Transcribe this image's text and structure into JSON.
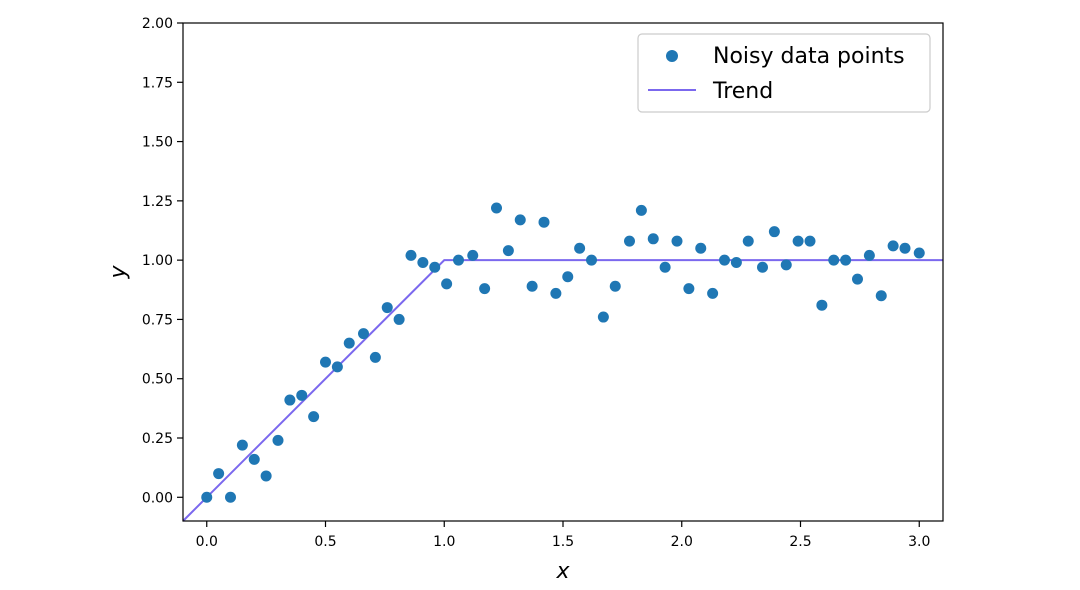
{
  "chart_data": {
    "type": "scatter",
    "title": "",
    "xlabel": "x",
    "ylabel": "y",
    "xlim": [
      -0.1,
      3.1
    ],
    "ylim": [
      -0.1,
      2.0
    ],
    "xticks": [
      "0.0",
      "0.5",
      "1.0",
      "1.5",
      "2.0",
      "2.5",
      "3.0"
    ],
    "yticks": [
      "0.00",
      "0.25",
      "0.50",
      "0.75",
      "1.00",
      "1.25",
      "1.50",
      "1.75",
      "2.00"
    ],
    "grid": false,
    "legend_position": "top-right",
    "series": [
      {
        "name": "Noisy data points",
        "kind": "scatter",
        "color": "#1f77b4",
        "x": [
          0.0,
          0.05,
          0.1,
          0.15,
          0.2,
          0.25,
          0.3,
          0.35,
          0.4,
          0.45,
          0.5,
          0.55,
          0.6,
          0.66,
          0.71,
          0.76,
          0.81,
          0.86,
          0.91,
          0.96,
          1.01,
          1.06,
          1.12,
          1.17,
          1.22,
          1.27,
          1.32,
          1.37,
          1.42,
          1.47,
          1.52,
          1.57,
          1.62,
          1.67,
          1.72,
          1.78,
          1.83,
          1.88,
          1.93,
          1.98,
          2.03,
          2.08,
          2.13,
          2.18,
          2.23,
          2.28,
          2.34,
          2.39,
          2.44,
          2.49,
          2.54,
          2.59,
          2.64,
          2.69,
          2.74,
          2.79,
          2.84,
          2.89,
          2.94,
          3.0
        ],
        "y": [
          0.0,
          0.1,
          0.0,
          0.22,
          0.16,
          0.09,
          0.24,
          0.41,
          0.43,
          0.34,
          0.57,
          0.55,
          0.65,
          0.69,
          0.59,
          0.8,
          0.75,
          1.02,
          0.99,
          0.97,
          0.9,
          1.0,
          1.02,
          0.88,
          1.22,
          1.04,
          1.17,
          0.89,
          1.16,
          0.86,
          0.93,
          1.05,
          1.0,
          0.76,
          0.89,
          1.08,
          1.21,
          1.09,
          0.97,
          1.08,
          0.88,
          1.05,
          0.86,
          1.0,
          0.99,
          1.08,
          0.97,
          1.12,
          0.98,
          1.08,
          1.08,
          0.81,
          1.0,
          1.0,
          0.92,
          1.02,
          0.85,
          1.06,
          1.05,
          1.03
        ]
      },
      {
        "name": "Trend",
        "kind": "line",
        "color": "#7b68ee",
        "x": [
          -0.1,
          1.0,
          3.1
        ],
        "y": [
          -0.1,
          1.0,
          1.0
        ]
      }
    ]
  }
}
